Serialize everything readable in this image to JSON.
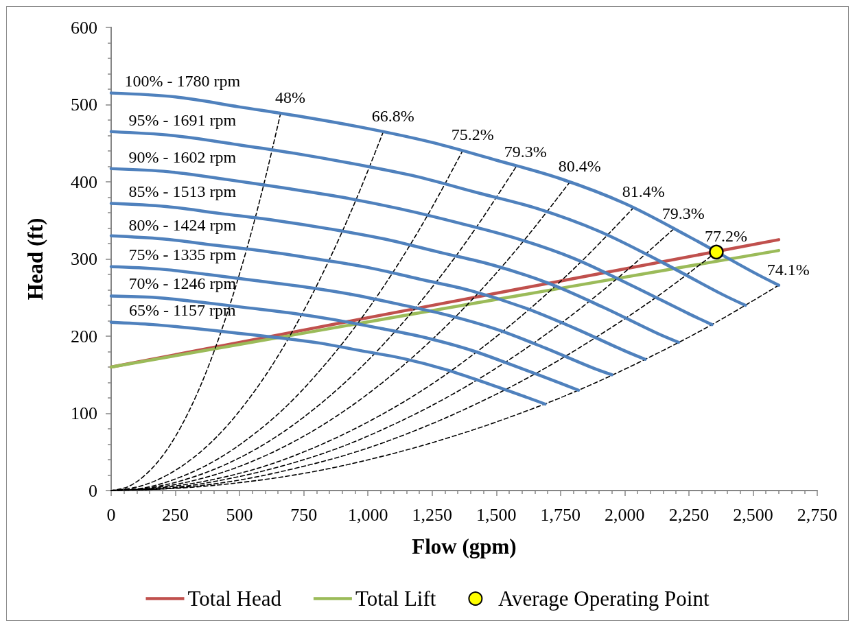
{
  "chart_data": {
    "type": "line",
    "xlabel": "Flow (gpm)",
    "ylabel": "Head (ft)",
    "xlim": [
      0,
      2750
    ],
    "xticks": [
      0,
      {
        "value": 50,
        "label": null
      },
      {
        "value": 100,
        "label": null
      },
      {
        "value": 150,
        "label": null
      },
      {
        "value": 200,
        "label": null
      },
      250,
      {
        "value": 300,
        "label": null
      },
      {
        "value": 350,
        "label": null
      },
      {
        "value": 400,
        "label": null
      },
      {
        "value": 450,
        "label": null
      },
      500,
      {
        "value": 550,
        "label": null
      },
      {
        "value": 600,
        "label": null
      },
      {
        "value": 650,
        "label": null
      },
      {
        "value": 700,
        "label": null
      },
      750,
      {
        "value": 800,
        "label": null
      },
      {
        "value": 850,
        "label": null
      },
      {
        "value": 900,
        "label": null
      },
      {
        "value": 950,
        "label": null
      },
      {
        "value": 1000,
        "label": "1,000"
      },
      {
        "value": 1050,
        "label": null
      },
      {
        "value": 1100,
        "label": null
      },
      {
        "value": 1150,
        "label": null
      },
      {
        "value": 1200,
        "label": null
      },
      {
        "value": 1250,
        "label": "1,250"
      },
      {
        "value": 1300,
        "label": null
      },
      {
        "value": 1350,
        "label": null
      },
      {
        "value": 1400,
        "label": null
      },
      {
        "value": 1450,
        "label": null
      },
      {
        "value": 1500,
        "label": "1,500"
      },
      {
        "value": 1550,
        "label": null
      },
      {
        "value": 1600,
        "label": null
      },
      {
        "value": 1650,
        "label": null
      },
      {
        "value": 1700,
        "label": null
      },
      {
        "value": 1750,
        "label": "1,750"
      },
      {
        "value": 1800,
        "label": null
      },
      {
        "value": 1850,
        "label": null
      },
      {
        "value": 1900,
        "label": null
      },
      {
        "value": 1950,
        "label": null
      },
      {
        "value": 2000,
        "label": "2,000"
      },
      {
        "value": 2050,
        "label": null
      },
      {
        "value": 2100,
        "label": null
      },
      {
        "value": 2150,
        "label": null
      },
      {
        "value": 2200,
        "label": null
      },
      {
        "value": 2250,
        "label": "2,250"
      },
      {
        "value": 2300,
        "label": null
      },
      {
        "value": 2350,
        "label": null
      },
      {
        "value": 2400,
        "label": null
      },
      {
        "value": 2450,
        "label": null
      },
      {
        "value": 2500,
        "label": "2,500"
      },
      {
        "value": 2550,
        "label": null
      },
      {
        "value": 2600,
        "label": null
      },
      {
        "value": 2650,
        "label": null
      },
      {
        "value": 2700,
        "label": null
      },
      {
        "value": 2750,
        "label": "2,750"
      }
    ],
    "ylim": [
      0,
      600
    ],
    "yticks": [
      0,
      {
        "value": 20,
        "label": null
      },
      {
        "value": 40,
        "label": null
      },
      {
        "value": 60,
        "label": null
      },
      {
        "value": 80,
        "label": null
      },
      100,
      {
        "value": 120,
        "label": null
      },
      {
        "value": 140,
        "label": null
      },
      {
        "value": 160,
        "label": null
      },
      {
        "value": 180,
        "label": null
      },
      200,
      {
        "value": 220,
        "label": null
      },
      {
        "value": 240,
        "label": null
      },
      {
        "value": 260,
        "label": null
      },
      {
        "value": 280,
        "label": null
      },
      300,
      {
        "value": 320,
        "label": null
      },
      {
        "value": 340,
        "label": null
      },
      {
        "value": 360,
        "label": null
      },
      {
        "value": 380,
        "label": null
      },
      400,
      {
        "value": 420,
        "label": null
      },
      {
        "value": 440,
        "label": null
      },
      {
        "value": 460,
        "label": null
      },
      {
        "value": 480,
        "label": null
      },
      500,
      {
        "value": 520,
        "label": null
      },
      {
        "value": 540,
        "label": null
      },
      {
        "value": 560,
        "label": null
      },
      {
        "value": 580,
        "label": null
      },
      600
    ],
    "legend": "bottom",
    "marker": "none",
    "line_style": "solid",
    "series": [
      {
        "name": "Total Head",
        "color": "#c0504d",
        "x": [
          0,
          1300,
          2600
        ],
        "values": [
          160,
          243,
          325
        ]
      },
      {
        "name": "Total Lift",
        "color": "#9bbb59",
        "x": [
          0,
          1300,
          2600
        ],
        "values": [
          160,
          236,
          311
        ]
      },
      {
        "color": "#000000",
        "line_style": "dashed",
        "x": [
          660,
          594,
          528,
          462,
          396,
          330,
          264,
          198,
          132,
          66,
          0
        ],
        "values": [
          489,
          396,
          313,
          240,
          176,
          122,
          78,
          44,
          20,
          5,
          0
        ]
      },
      {
        "color": "#000000",
        "line_style": "dashed",
        "x": [
          1060,
          954,
          848,
          742,
          636,
          530,
          424,
          318,
          212,
          106,
          0
        ],
        "values": [
          465,
          377,
          298,
          228,
          167,
          116,
          74,
          42,
          19,
          5,
          0
        ]
      },
      {
        "color": "#000000",
        "line_style": "dashed",
        "x": [
          1370,
          1233,
          1096,
          959,
          822,
          685,
          548,
          411,
          274,
          137,
          0
        ],
        "values": [
          441,
          357,
          282,
          216,
          159,
          110,
          71,
          40,
          18,
          4,
          0
        ]
      },
      {
        "color": "#000000",
        "line_style": "dashed",
        "x": [
          1576,
          1418,
          1261,
          1103,
          946,
          788,
          630,
          473,
          315,
          158,
          0
        ],
        "values": [
          419,
          339,
          268,
          205,
          151,
          105,
          67,
          38,
          17,
          4,
          0
        ]
      },
      {
        "color": "#000000",
        "line_style": "dashed",
        "x": [
          1787,
          1608,
          1430,
          1251,
          1072,
          894,
          715,
          536,
          357,
          179,
          0
        ],
        "values": [
          400,
          324,
          256,
          196,
          144,
          100,
          64,
          36,
          16,
          4,
          0
        ]
      },
      {
        "color": "#000000",
        "line_style": "dashed",
        "x": [
          2036,
          1832,
          1629,
          1425,
          1222,
          1018,
          814,
          611,
          407,
          204,
          0
        ],
        "values": [
          367,
          297,
          235,
          180,
          132,
          92,
          59,
          33,
          15,
          4,
          0
        ]
      },
      {
        "color": "#000000",
        "line_style": "dashed",
        "x": [
          2191,
          1972,
          1753,
          1534,
          1315,
          1096,
          876,
          657,
          438,
          219,
          0
        ],
        "values": [
          339,
          275,
          217,
          166,
          122,
          85,
          54,
          31,
          14,
          3,
          0
        ]
      },
      {
        "color": "#000000",
        "line_style": "dashed",
        "x": [
          2357,
          2121,
          1886,
          1650,
          1414,
          1179,
          943,
          707,
          471,
          236,
          0
        ],
        "values": [
          309,
          250,
          198,
          151,
          111,
          77,
          49,
          28,
          12,
          3,
          0
        ]
      },
      {
        "color": "#000000",
        "line_style": "dashed",
        "x": [
          2600,
          2340,
          2080,
          1820,
          1560,
          1300,
          1040,
          780,
          520,
          260,
          0
        ],
        "values": [
          266,
          215,
          170,
          130,
          96,
          67,
          43,
          24,
          11,
          3,
          0
        ]
      },
      {
        "color": "#4f81bd",
        "x": [
          0,
          250,
          500,
          750,
          1000,
          1250,
          1500,
          1750,
          2000,
          2250,
          2500,
          2600
        ],
        "values": [
          515,
          510,
          497,
          484,
          469,
          451,
          428,
          404,
          372,
          329,
          283,
          266
        ]
      },
      {
        "color": "#4f81bd",
        "x": [
          0,
          238,
          475,
          713,
          950,
          1188,
          1425,
          1663,
          1900,
          2138,
          2375,
          2470
        ],
        "values": [
          465,
          460,
          449,
          437,
          423,
          407,
          386,
          365,
          336,
          297,
          255,
          240
        ]
      },
      {
        "color": "#4f81bd",
        "x": [
          0,
          225,
          450,
          675,
          900,
          1125,
          1350,
          1575,
          1800,
          2025,
          2250,
          2340
        ],
        "values": [
          417,
          413,
          403,
          392,
          380,
          365,
          347,
          327,
          301,
          266,
          229,
          215
        ]
      },
      {
        "color": "#4f81bd",
        "x": [
          0,
          213,
          425,
          638,
          850,
          1063,
          1275,
          1488,
          1700,
          1913,
          2125,
          2210
        ],
        "values": [
          372,
          368,
          359,
          350,
          339,
          326,
          309,
          292,
          269,
          238,
          204,
          192
        ]
      },
      {
        "color": "#4f81bd",
        "x": [
          0,
          200,
          400,
          600,
          800,
          1000,
          1200,
          1400,
          1600,
          1800,
          2000,
          2080
        ],
        "values": [
          330,
          326,
          318,
          310,
          300,
          289,
          274,
          259,
          238,
          211,
          181,
          170
        ]
      },
      {
        "color": "#4f81bd",
        "x": [
          0,
          188,
          375,
          563,
          750,
          938,
          1125,
          1313,
          1500,
          1688,
          1875,
          1950
        ],
        "values": [
          290,
          287,
          280,
          272,
          264,
          254,
          241,
          227,
          209,
          185,
          159,
          150
        ]
      },
      {
        "color": "#4f81bd",
        "x": [
          0,
          175,
          350,
          525,
          700,
          875,
          1050,
          1225,
          1400,
          1575,
          1750,
          1820
        ],
        "values": [
          252,
          250,
          244,
          237,
          230,
          221,
          210,
          198,
          182,
          161,
          139,
          130
        ]
      },
      {
        "color": "#4f81bd",
        "x": [
          0,
          163,
          325,
          488,
          650,
          813,
          975,
          1138,
          1300,
          1463,
          1625,
          1690
        ],
        "values": [
          218,
          215,
          210,
          204,
          198,
          191,
          181,
          171,
          157,
          139,
          120,
          112
        ]
      },
      {
        "name": "Average Operating Point",
        "type": "scatter",
        "marker": "circle",
        "color": "#ffff00",
        "x": [
          2357
        ],
        "values": [
          309
        ]
      }
    ],
    "annotations": [
      {
        "text": "100% - 1780 rpm",
        "x": 240,
        "y": 510
      },
      {
        "text": "95% - 1691 rpm",
        "x": 240,
        "y": 460
      },
      {
        "text": "90% - 1602 rpm",
        "x": 240,
        "y": 412
      },
      {
        "text": "85% - 1513 rpm",
        "x": 240,
        "y": 367
      },
      {
        "text": "80% - 1424 rpm",
        "x": 240,
        "y": 324
      },
      {
        "text": "75% - 1335 rpm",
        "x": 240,
        "y": 285
      },
      {
        "text": "70% - 1246 rpm",
        "x": 240,
        "y": 248
      },
      {
        "text": "65% - 1157 rpm",
        "x": 240,
        "y": 213
      },
      {
        "text": "48%",
        "x": 660,
        "y": 489
      },
      {
        "text": "66.8%",
        "x": 1060,
        "y": 465
      },
      {
        "text": "75.2%",
        "x": 1370,
        "y": 441
      },
      {
        "text": "79.3%",
        "x": 1576,
        "y": 419
      },
      {
        "text": "80.4%",
        "x": 1787,
        "y": 400
      },
      {
        "text": "81.4%",
        "x": 2036,
        "y": 367
      },
      {
        "text": "79.3%",
        "x": 2191,
        "y": 339
      },
      {
        "text": "77.2%",
        "x": 2357,
        "y": 309
      },
      {
        "text": "74.1%",
        "x": 2600,
        "y": 266
      }
    ]
  }
}
